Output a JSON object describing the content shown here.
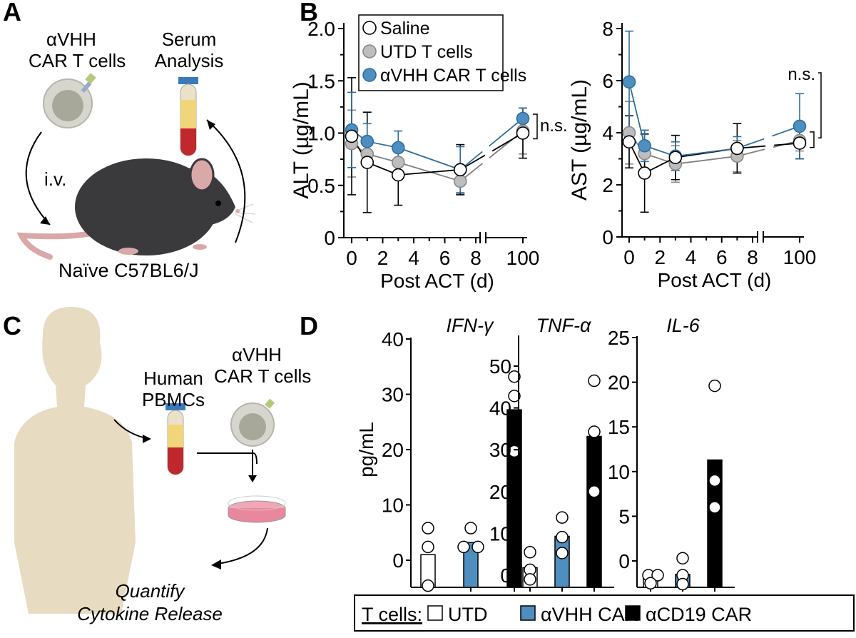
{
  "panels": {
    "a": "A",
    "b": "B",
    "c": "C",
    "d": "D"
  },
  "colors": {
    "saline": "#ffffff",
    "utd": "#bdbdbd",
    "car": "#4f8fc0",
    "cd19": "#000000",
    "line_car": "#2f6e9c",
    "line_utd": "#808080"
  },
  "panel_a": {
    "car_t_line1": "αVHH",
    "car_t_line2": "CAR T cells",
    "serum_line1": "Serum",
    "serum_line2": "Analysis",
    "route": "i.v.",
    "mouse": "Naïve C57BL6/J"
  },
  "panel_c": {
    "pbmc_line1": "Human",
    "pbmc_line2": "PBMCs",
    "car_t_line1": "αVHH",
    "car_t_line2": "CAR T cells",
    "quantify_line1": "Quantify",
    "quantify_line2": "Cytokine Release"
  },
  "legend_b": [
    "Saline",
    "UTD T cells",
    "αVHH CAR T cells"
  ],
  "legend_d": {
    "title": "T cells:",
    "items": [
      "UTD",
      "αVHH CAR",
      "αCD19 CAR"
    ]
  },
  "chart_data": [
    {
      "type": "line",
      "panel": "B",
      "ylabel": "ALT (µg/mL)",
      "xlabel": "Post ACT (d)",
      "ylim": [
        0,
        2.0
      ],
      "yticks": [
        "0",
        "0.5",
        "1.0",
        "1.5",
        "2.0"
      ],
      "ytick_values": [
        0,
        0.5,
        1.0,
        1.5,
        2.0
      ],
      "xticks": [
        "0",
        "2",
        "4",
        "6",
        "8",
        "100"
      ],
      "xtick_values": [
        0,
        2,
        4,
        6,
        8,
        100
      ],
      "x_axis_break": true,
      "x": [
        0,
        1,
        3,
        7,
        100
      ],
      "annotation": "n.s.",
      "series": [
        {
          "name": "Saline",
          "values": [
            0.97,
            0.72,
            0.6,
            0.65,
            1.0
          ],
          "err": [
            0.56,
            0.48,
            0.29,
            0.24,
            0.24
          ]
        },
        {
          "name": "UTD T cells",
          "values": [
            0.9,
            0.8,
            0.72,
            0.54,
            1.02
          ],
          "err": [
            0.32,
            0.12,
            0.1,
            0.12,
            0.22
          ]
        },
        {
          "name": "αVHH CAR T cells",
          "values": [
            1.03,
            0.92,
            0.86,
            0.65,
            1.14
          ],
          "err": [
            0.36,
            0.17,
            0.16,
            0.22,
            0.1
          ]
        }
      ]
    },
    {
      "type": "line",
      "panel": "B",
      "ylabel": "AST (µg/mL)",
      "xlabel": "Post ACT (d)",
      "ylim": [
        0,
        8
      ],
      "yticks": [
        "0",
        "2",
        "4",
        "6",
        "8"
      ],
      "ytick_values": [
        0,
        2,
        4,
        6,
        8
      ],
      "xticks": [
        "0",
        "2",
        "4",
        "6",
        "8",
        "100"
      ],
      "xtick_values": [
        0,
        2,
        4,
        6,
        8,
        100
      ],
      "x_axis_break": true,
      "x": [
        0,
        1,
        3,
        7,
        100
      ],
      "annotation": "n.s.",
      "series": [
        {
          "name": "Saline",
          "values": [
            3.65,
            2.45,
            3.05,
            3.4,
            3.6
          ],
          "err": [
            1.0,
            1.5,
            0.85,
            0.95,
            0.6
          ]
        },
        {
          "name": "UTD T cells",
          "values": [
            4.0,
            3.2,
            2.8,
            3.1,
            3.7
          ],
          "err": [
            1.2,
            0.9,
            0.7,
            0.6,
            0.4
          ]
        },
        {
          "name": "αVHH CAR T cells",
          "values": [
            5.95,
            3.5,
            3.1,
            3.4,
            4.25
          ],
          "err": [
            1.95,
            0.6,
            0.55,
            0.45,
            1.25
          ]
        }
      ]
    },
    {
      "type": "bar",
      "panel": "D",
      "title": "IFN-γ",
      "ylabel": "pg/mL",
      "ylim": [
        -5,
        40
      ],
      "yticks": [
        "0",
        "10",
        "20",
        "30",
        "40"
      ],
      "ytick_values": [
        0,
        10,
        20,
        30,
        40
      ],
      "categories": [
        "UTD",
        "αVHH CAR",
        "αCD19 CAR"
      ],
      "values": [
        1.0,
        3.2,
        27.2
      ],
      "points": [
        [
          5.8,
          2.4,
          -4.6
        ],
        [
          5.8,
          2.4,
          2.4
        ],
        [
          33.2,
          29.7,
          19.7
        ]
      ]
    },
    {
      "type": "bar",
      "panel": "D",
      "title": "TNF-α",
      "ylabel": "",
      "ylim": [
        -3,
        57
      ],
      "yticks": [
        "0",
        "10",
        "20",
        "30",
        "40",
        "50"
      ],
      "ytick_values": [
        0,
        10,
        20,
        30,
        40,
        50
      ],
      "categories": [
        "UTD",
        "αVHH CAR",
        "αCD19 CAR"
      ],
      "values": [
        1.8,
        9.3,
        33.2
      ],
      "points": [
        [
          5.5,
          1.3,
          -1.0
        ],
        [
          13.8,
          9.1,
          5.3
        ],
        [
          46.5,
          34.3,
          20.0
        ]
      ]
    },
    {
      "type": "bar",
      "panel": "D",
      "title": "IL-6",
      "ylabel": "",
      "ylim": [
        -3,
        25
      ],
      "yticks": [
        "0",
        "5",
        "10",
        "15",
        "20",
        "25"
      ],
      "ytick_values": [
        0,
        5,
        10,
        15,
        20,
        25
      ],
      "categories": [
        "UTD",
        "αVHH CAR",
        "αCD19 CAR"
      ],
      "values": [
        -1.7,
        -1.5,
        11.3
      ],
      "points": [
        [
          -1.6,
          -1.6,
          -2.5
        ],
        [
          0.3,
          -1.6,
          -2.6
        ],
        [
          19.6,
          9.0,
          6.0
        ]
      ]
    }
  ]
}
